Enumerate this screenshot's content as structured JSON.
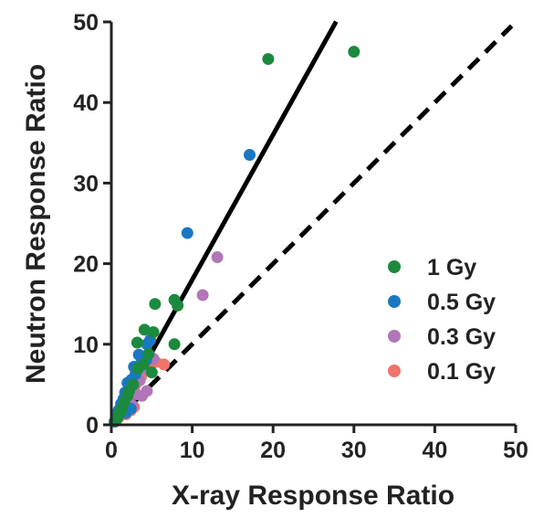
{
  "chart_data": {
    "type": "scatter",
    "title": "",
    "xlabel": "X-ray Response Ratio",
    "ylabel": "Neutron Response Ratio",
    "xlim": [
      0,
      50
    ],
    "ylim": [
      0,
      50
    ],
    "xticks": [
      0,
      10,
      20,
      30,
      40,
      50
    ],
    "yticks": [
      0,
      10,
      20,
      30,
      40,
      50
    ],
    "x_tick_labels": [
      "0",
      "10",
      "20",
      "30",
      "40",
      "50"
    ],
    "y_tick_labels": [
      "0",
      "10",
      "20",
      "30",
      "40",
      "50"
    ],
    "grid": false,
    "legend_position": "right",
    "reference_lines": [
      {
        "style": "solid",
        "slope": 1.8,
        "intercept": 0,
        "x_range": [
          0.5,
          27.8
        ]
      },
      {
        "style": "dashed",
        "slope": 1.0,
        "intercept": 0,
        "x_range": [
          0.5,
          49.5
        ]
      }
    ],
    "series": [
      {
        "name": "1 Gy",
        "color": "#1b8a3e",
        "points": [
          [
            30.0,
            46.3
          ],
          [
            19.4,
            45.4
          ],
          [
            5.4,
            15.0
          ],
          [
            7.8,
            15.5
          ],
          [
            8.2,
            14.8
          ],
          [
            4.1,
            11.8
          ],
          [
            5.2,
            11.5
          ],
          [
            3.2,
            10.2
          ],
          [
            7.8,
            10.0
          ],
          [
            4.6,
            8.8
          ],
          [
            4.0,
            7.5
          ],
          [
            3.3,
            7.0
          ],
          [
            5.0,
            6.5
          ],
          [
            2.7,
            5.0
          ],
          [
            2.2,
            4.2
          ],
          [
            2.0,
            3.6
          ],
          [
            1.6,
            2.8
          ],
          [
            1.3,
            2.0
          ],
          [
            1.0,
            1.4
          ],
          [
            0.8,
            0.9
          ],
          [
            0.5,
            0.5
          ]
        ]
      },
      {
        "name": "0.5 Gy",
        "color": "#1a78c2",
        "points": [
          [
            17.1,
            33.5
          ],
          [
            9.4,
            23.8
          ],
          [
            4.8,
            10.5
          ],
          [
            4.4,
            10.0
          ],
          [
            3.4,
            8.7
          ],
          [
            2.8,
            7.2
          ],
          [
            4.3,
            8.0
          ],
          [
            3.6,
            7.5
          ],
          [
            3.0,
            6.3
          ],
          [
            2.0,
            5.2
          ],
          [
            2.5,
            5.6
          ],
          [
            2.2,
            4.8
          ],
          [
            1.7,
            4.0
          ],
          [
            1.5,
            3.2
          ],
          [
            1.2,
            2.6
          ],
          [
            0.9,
            1.8
          ],
          [
            0.7,
            1.2
          ],
          [
            1.8,
            1.5
          ],
          [
            2.4,
            2.0
          ],
          [
            0.4,
            0.4
          ]
        ]
      },
      {
        "name": "0.3 Gy",
        "color": "#b176b8",
        "points": [
          [
            13.1,
            20.8
          ],
          [
            11.3,
            16.1
          ],
          [
            5.2,
            8.2
          ],
          [
            4.0,
            7.0
          ],
          [
            3.5,
            5.5
          ],
          [
            2.7,
            5.0
          ],
          [
            2.2,
            4.8
          ],
          [
            1.8,
            4.0
          ],
          [
            3.1,
            3.8
          ],
          [
            3.8,
            3.6
          ],
          [
            4.4,
            4.2
          ],
          [
            2.0,
            3.3
          ],
          [
            1.5,
            2.8
          ],
          [
            1.2,
            2.2
          ],
          [
            0.9,
            1.6
          ],
          [
            2.6,
            2.4
          ],
          [
            0.6,
            0.9
          ]
        ]
      },
      {
        "name": "0.1 Gy",
        "color": "#f0746a",
        "points": [
          [
            6.5,
            7.5
          ],
          [
            5.5,
            7.8
          ],
          [
            4.5,
            6.8
          ],
          [
            3.7,
            6.0
          ],
          [
            3.0,
            5.0
          ],
          [
            2.5,
            4.5
          ],
          [
            2.0,
            3.5
          ],
          [
            1.7,
            3.2
          ],
          [
            1.4,
            2.5
          ],
          [
            1.2,
            2.0
          ],
          [
            1.0,
            1.5
          ],
          [
            2.8,
            2.2
          ],
          [
            2.4,
            1.8
          ],
          [
            1.8,
            1.3
          ],
          [
            0.8,
            0.8
          ],
          [
            0.5,
            0.4
          ]
        ]
      }
    ]
  }
}
